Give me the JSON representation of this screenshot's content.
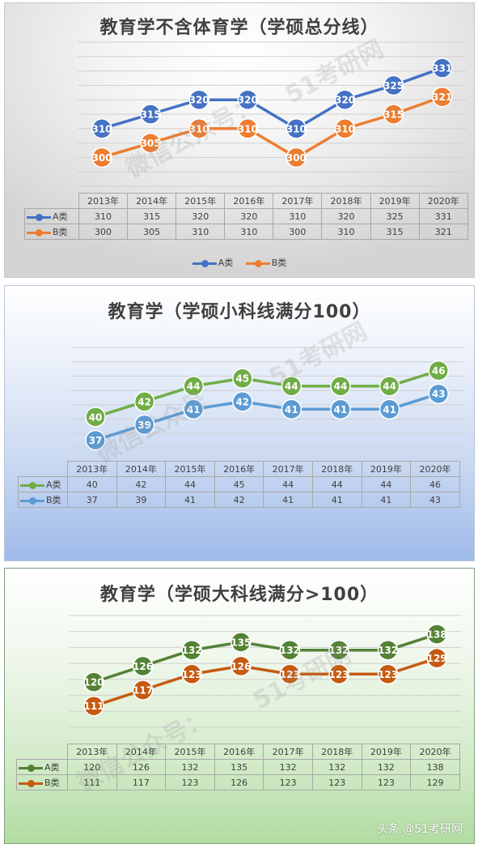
{
  "chart_data": [
    {
      "type": "line",
      "title": "教育学不含体育学（学硕总分线）",
      "categories": [
        "2013年",
        "2014年",
        "2015年",
        "2016年",
        "2017年",
        "2018年",
        "2019年",
        "2020年"
      ],
      "series": [
        {
          "name": "A类",
          "values": [
            310,
            315,
            320,
            320,
            310,
            320,
            325,
            331
          ],
          "color": "#4472c4"
        },
        {
          "name": "B类",
          "values": [
            300,
            305,
            310,
            310,
            300,
            310,
            315,
            321
          ],
          "color": "#ed7d31"
        }
      ],
      "ylim": [
        290,
        340
      ],
      "grid": true,
      "data_table": true,
      "legend": "bottom",
      "watermark": [
        "微信公众号：",
        "51考研网"
      ]
    },
    {
      "type": "line",
      "title": "教育学（学硕小科线满分100）",
      "categories": [
        "2013年",
        "2014年",
        "2015年",
        "2016年",
        "2017年",
        "2018年",
        "2019年",
        "2020年"
      ],
      "series": [
        {
          "name": "A类",
          "values": [
            40,
            42,
            44,
            45,
            44,
            44,
            44,
            46
          ],
          "color": "#70ad47"
        },
        {
          "name": "B类",
          "values": [
            37,
            39,
            41,
            42,
            41,
            41,
            41,
            43
          ],
          "color": "#5b9bd5"
        }
      ],
      "ylim": [
        36,
        49
      ],
      "grid": true,
      "data_table": true,
      "watermark": [
        "微信公众号",
        "51考研网"
      ]
    },
    {
      "type": "line",
      "title": "教育学（学硕大科线满分>100）",
      "categories": [
        "2013年",
        "2014年",
        "2015年",
        "2016年",
        "2017年",
        "2018年",
        "2019年",
        "2020年"
      ],
      "series": [
        {
          "name": "A类",
          "values": [
            120,
            126,
            132,
            135,
            132,
            132,
            132,
            138
          ],
          "color": "#548235"
        },
        {
          "name": "B类",
          "values": [
            111,
            117,
            123,
            126,
            123,
            123,
            123,
            129
          ],
          "color": "#c55a11"
        }
      ],
      "ylim": [
        103,
        145
      ],
      "grid": true,
      "data_table": true,
      "watermark": [
        "微信公众号：",
        "51考研网"
      ]
    }
  ],
  "footer": "头条 @51考研网"
}
